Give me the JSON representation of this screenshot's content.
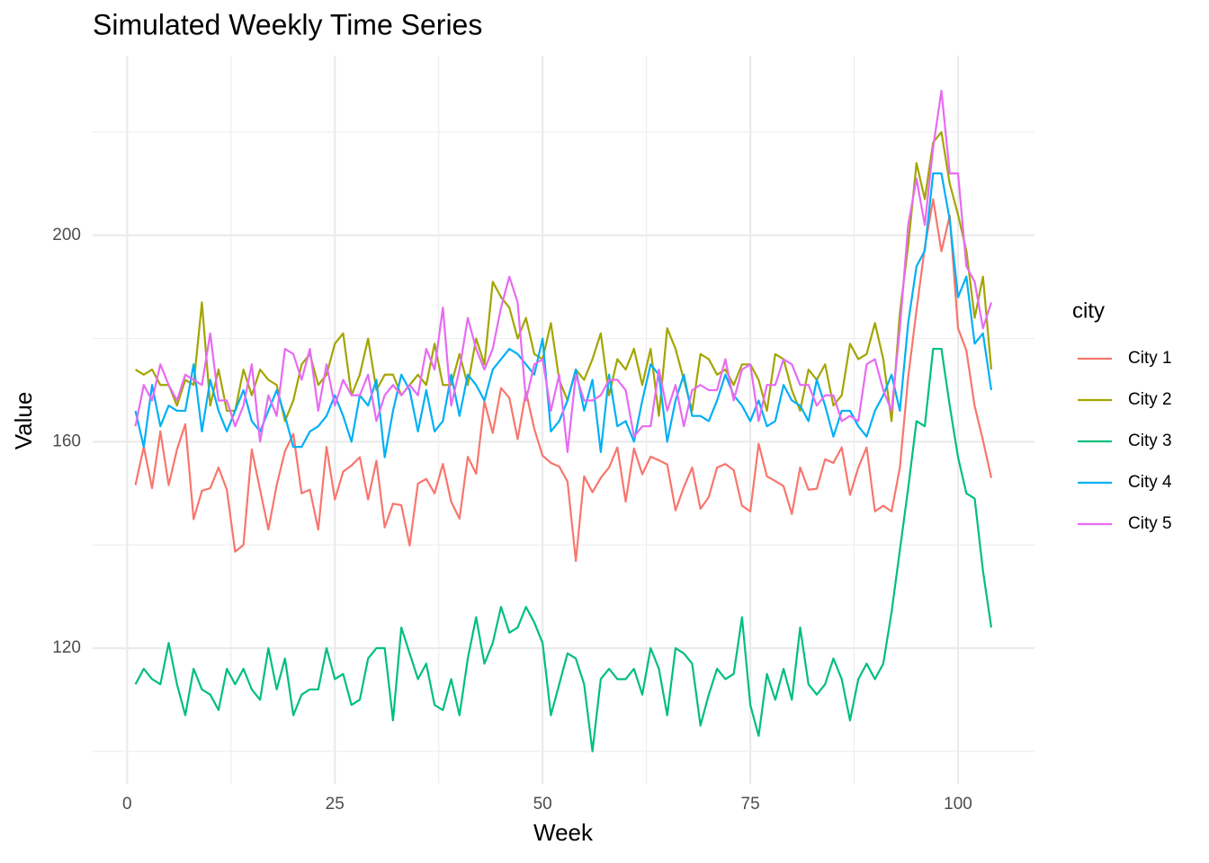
{
  "chart_data": {
    "type": "line",
    "title": "Simulated Weekly Time Series",
    "x_label": "Week",
    "y_label": "Value",
    "legend_title": "city",
    "legend_position": "right",
    "grid": true,
    "xlim": [
      -4.15,
      109.2
    ],
    "ylim": [
      93.7,
      234.8
    ],
    "xticks": [
      0,
      25,
      50,
      75,
      100
    ],
    "yticks": [
      120,
      160,
      200
    ],
    "minor_xticks": [
      12.5,
      37.5,
      62.5,
      87.5
    ],
    "minor_yticks": [
      100,
      140,
      180,
      220
    ],
    "x": [
      1,
      2,
      3,
      4,
      5,
      6,
      7,
      8,
      9,
      10,
      11,
      12,
      13,
      14,
      15,
      16,
      17,
      18,
      19,
      20,
      21,
      22,
      23,
      24,
      25,
      26,
      27,
      28,
      29,
      30,
      31,
      32,
      33,
      34,
      35,
      36,
      37,
      38,
      39,
      40,
      41,
      42,
      43,
      44,
      45,
      46,
      47,
      48,
      49,
      50,
      51,
      52,
      53,
      54,
      55,
      56,
      57,
      58,
      59,
      60,
      61,
      62,
      63,
      64,
      65,
      66,
      67,
      68,
      69,
      70,
      71,
      72,
      73,
      74,
      75,
      76,
      77,
      78,
      79,
      80,
      81,
      82,
      83,
      84,
      85,
      86,
      87,
      88,
      89,
      90,
      91,
      92,
      93,
      94,
      95,
      96,
      97,
      98,
      99,
      100,
      101,
      102,
      103,
      104
    ],
    "series": [
      {
        "name": "City 1",
        "color": "#F8766D",
        "values": [
          151.6,
          159,
          151,
          162,
          151.6,
          158.5,
          163.4,
          145,
          150.5,
          151,
          155,
          150.7,
          138.7,
          140,
          158.5,
          150.7,
          143,
          151.6,
          158.2,
          161.5,
          150,
          150.7,
          143,
          159,
          148.8,
          154.2,
          155.4,
          157,
          148.8,
          156.3,
          143.4,
          148,
          147.7,
          139.9,
          151.9,
          152.8,
          150,
          155.7,
          148.4,
          145.1,
          157.1,
          153.8,
          167.8,
          161.7,
          170.4,
          168.5,
          160.5,
          169.7,
          162.5,
          157.3,
          155.9,
          155.2,
          152.3,
          136.9,
          153.3,
          150.2,
          153,
          155,
          158.9,
          148.4,
          158.7,
          153.7,
          157.1,
          156.4,
          155.6,
          146.7,
          151.2,
          155,
          147,
          149.3,
          155,
          155.7,
          154.5,
          147.6,
          146.5,
          159.6,
          153.3,
          152.4,
          151.4,
          146,
          155,
          150.7,
          150.9,
          156.6,
          155.9,
          158.9,
          149.7,
          155,
          158.9,
          146.5,
          147.6,
          146.5,
          155,
          172.5,
          185.5,
          197.7,
          207,
          196.9,
          203.8,
          182,
          177.7,
          166.9,
          160.3,
          153
        ]
      },
      {
        "name": "City 2",
        "color": "#A3A500",
        "values": [
          174,
          173,
          174,
          171,
          171,
          167,
          172,
          171,
          187,
          167,
          174,
          166,
          166,
          174,
          169,
          174,
          172,
          171,
          164,
          168,
          175,
          177,
          171,
          173,
          179,
          181,
          169,
          173,
          180,
          170,
          173,
          173,
          169,
          171,
          173,
          171,
          179,
          171,
          171,
          177,
          171,
          180,
          175,
          191,
          188,
          186,
          180,
          184,
          177,
          176,
          183,
          172,
          168,
          174,
          172,
          176,
          181,
          169,
          176,
          174,
          178,
          171,
          178,
          165,
          182,
          178,
          172,
          166,
          177,
          176,
          173,
          174,
          171,
          175,
          175,
          172,
          166,
          177,
          176,
          170,
          166,
          174,
          172,
          175,
          167,
          169,
          179,
          176,
          177,
          183,
          176,
          164,
          185,
          198,
          214,
          207,
          218,
          220,
          210,
          204,
          197,
          184,
          192,
          174
        ]
      },
      {
        "name": "City 3",
        "color": "#00BF7D",
        "values": [
          113,
          116,
          114,
          113,
          121,
          113,
          107,
          116,
          112,
          111,
          108,
          116,
          113,
          116,
          112,
          110,
          120,
          112,
          118,
          107,
          111,
          112,
          112,
          120,
          114,
          115,
          109,
          110,
          118,
          120,
          120,
          106,
          124,
          119,
          114,
          117,
          109,
          108,
          114,
          107,
          118,
          126,
          117,
          121,
          128,
          123,
          124,
          128,
          125,
          121,
          107,
          113,
          119,
          118,
          113,
          100,
          114,
          116,
          114,
          114,
          116,
          111,
          120,
          116,
          107,
          120,
          119,
          117,
          105,
          111,
          116,
          114,
          115,
          126,
          109,
          103,
          115,
          110,
          116,
          110,
          124,
          113,
          111,
          113,
          118,
          114,
          106,
          114,
          117,
          114,
          117,
          127,
          139,
          151,
          164,
          163,
          178,
          178,
          167,
          157,
          150,
          149,
          135,
          124
        ]
      },
      {
        "name": "City 4",
        "color": "#00B0F6",
        "values": [
          166,
          159,
          171,
          163,
          167,
          166,
          166,
          175,
          162,
          172,
          166,
          162,
          166,
          170,
          164,
          162,
          166,
          170,
          165,
          159,
          159,
          162,
          163,
          165,
          169,
          165,
          160,
          169,
          167,
          172,
          157,
          166,
          173,
          170,
          162,
          170,
          162,
          164,
          173,
          165,
          173,
          171,
          168,
          174,
          176,
          178,
          177,
          175,
          173,
          180,
          162,
          164,
          168,
          174,
          166,
          172,
          158,
          173,
          163,
          164,
          160,
          168,
          175,
          173,
          160,
          168,
          173,
          165,
          165,
          164,
          168,
          173,
          169,
          167,
          164,
          168,
          163,
          164,
          171,
          168,
          167,
          164,
          172,
          167,
          161,
          166,
          166,
          163,
          161,
          166,
          169,
          173,
          166,
          183,
          194,
          197,
          212,
          212,
          203,
          188,
          192,
          179,
          181,
          170
        ]
      },
      {
        "name": "City 5",
        "color": "#E76BF3",
        "values": [
          163,
          171,
          168,
          175,
          171,
          168,
          173,
          172,
          171,
          181,
          168,
          168,
          163,
          167,
          175,
          160,
          169,
          165,
          178,
          177,
          172,
          178,
          166,
          175,
          167,
          172,
          169,
          169,
          173,
          164,
          169,
          171,
          169,
          171,
          169,
          178,
          174,
          186,
          167,
          174,
          184,
          178,
          174,
          178,
          186,
          192,
          187,
          168,
          175,
          176,
          166,
          173,
          158,
          173,
          168,
          168,
          169,
          172,
          172,
          170,
          161,
          163,
          163,
          174,
          166,
          171,
          163,
          170,
          171,
          170,
          170,
          176,
          168,
          174,
          175,
          164,
          171,
          171,
          176,
          175,
          171,
          171,
          167,
          169,
          169,
          164,
          165,
          164,
          175,
          176,
          170,
          166,
          182,
          202,
          211,
          202,
          217,
          228,
          212,
          212,
          194,
          191,
          182,
          187
        ]
      }
    ]
  }
}
